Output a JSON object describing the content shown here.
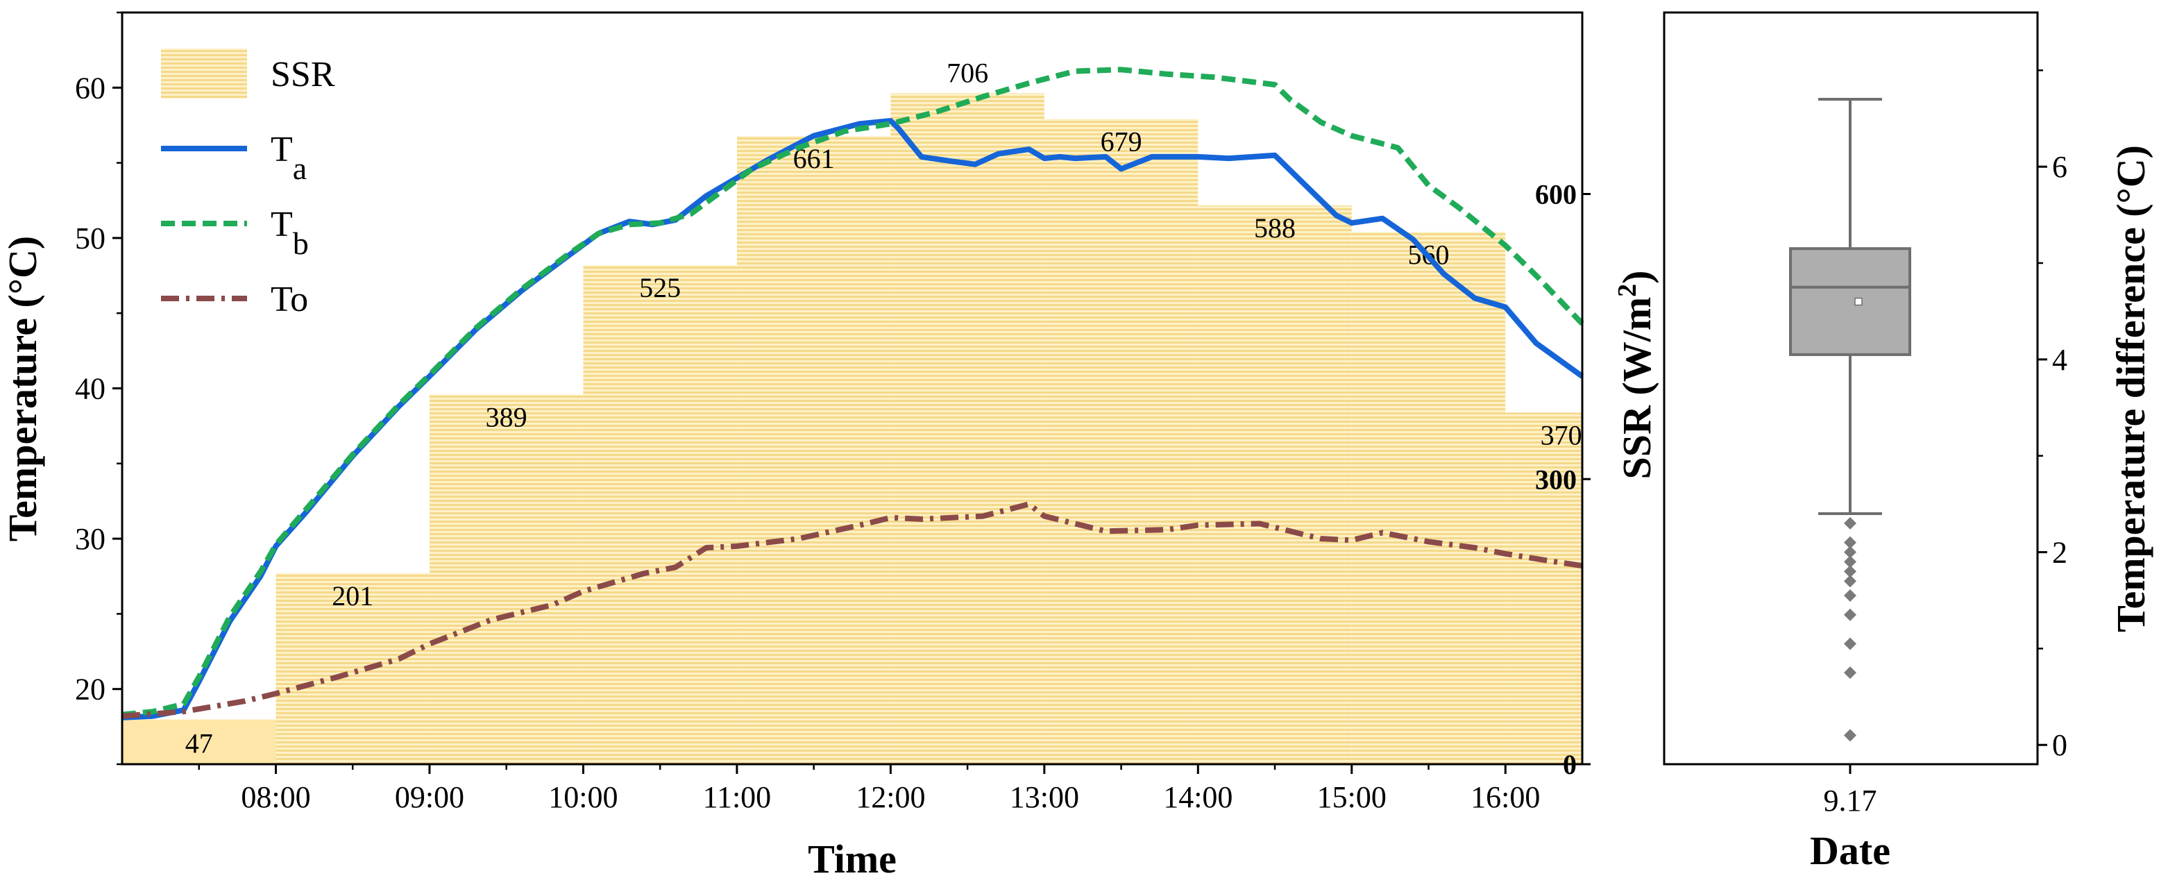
{
  "chart_data": [
    {
      "type": "line",
      "title": "",
      "xlabel": "Time",
      "ylabel": "Temperature (°C)",
      "y2label": "SSR (W/m²)",
      "xlim": [
        7.0,
        16.5
      ],
      "ylim": [
        15,
        65
      ],
      "y2lim": [
        0,
        791
      ],
      "xticks": [
        {
          "value": 8,
          "label": "08:00"
        },
        {
          "value": 9,
          "label": "09:00"
        },
        {
          "value": 10,
          "label": "10:00"
        },
        {
          "value": 11,
          "label": "11:00"
        },
        {
          "value": 12,
          "label": "12:00"
        },
        {
          "value": 13,
          "label": "13:00"
        },
        {
          "value": 14,
          "label": "14:00"
        },
        {
          "value": 15,
          "label": "15:00"
        },
        {
          "value": 16,
          "label": "16:00"
        }
      ],
      "yticks": [
        {
          "value": 20,
          "label": "20"
        },
        {
          "value": 30,
          "label": "30"
        },
        {
          "value": 40,
          "label": "40"
        },
        {
          "value": 50,
          "label": "50"
        },
        {
          "value": 60,
          "label": "60"
        }
      ],
      "y2ticks": [
        {
          "value": 0,
          "label": "0"
        },
        {
          "value": 300,
          "label": "300"
        },
        {
          "value": 600,
          "label": "600"
        }
      ],
      "ssr_bars": {
        "name": "SSR",
        "color": "#fbe7a6",
        "hatch_color": "#f2d27a",
        "bars": [
          {
            "start": 7,
            "end": 8,
            "value": 47,
            "label": "47"
          },
          {
            "start": 8,
            "end": 9,
            "value": 201,
            "label": "201"
          },
          {
            "start": 9,
            "end": 10,
            "value": 389,
            "label": "389"
          },
          {
            "start": 10,
            "end": 11,
            "value": 525,
            "label": "525"
          },
          {
            "start": 11,
            "end": 12,
            "value": 661,
            "label": "661"
          },
          {
            "start": 12,
            "end": 13,
            "value": 706,
            "label": "706"
          },
          {
            "start": 13,
            "end": 14,
            "value": 679,
            "label": "679"
          },
          {
            "start": 14,
            "end": 15,
            "value": 588,
            "label": "588"
          },
          {
            "start": 15,
            "end": 16,
            "value": 560,
            "label": "560"
          },
          {
            "start": 16,
            "end": 16.5,
            "value": 370,
            "label": "370"
          }
        ]
      },
      "legend": {
        "position": "top-left",
        "entries": [
          {
            "name": "SSR",
            "main": "SSR",
            "sub": ""
          },
          {
            "name": "Ta",
            "main": "T",
            "sub": "a"
          },
          {
            "name": "Tb",
            "main": "T",
            "sub": "b"
          },
          {
            "name": "To",
            "main": "To",
            "sub": ""
          }
        ]
      },
      "series": [
        {
          "name": "Ta",
          "color": "#1565d8",
          "style": "solid",
          "x": [
            7.0,
            7.2,
            7.4,
            7.5,
            7.7,
            7.9,
            8.0,
            8.2,
            8.5,
            8.8,
            9.0,
            9.3,
            9.6,
            9.9,
            10.1,
            10.3,
            10.45,
            10.6,
            10.8,
            11.0,
            11.2,
            11.5,
            11.8,
            12.0,
            12.05,
            12.2,
            12.4,
            12.55,
            12.7,
            12.9,
            13.0,
            13.1,
            13.2,
            13.4,
            13.5,
            13.7,
            14.0,
            14.2,
            14.5,
            14.7,
            14.9,
            15.0,
            15.2,
            15.4,
            15.6,
            15.8,
            16.0,
            16.2,
            16.5
          ],
          "values": [
            18.1,
            18.2,
            18.6,
            20.5,
            24.5,
            27.5,
            29.5,
            31.8,
            35.5,
            38.8,
            40.8,
            43.9,
            46.5,
            48.8,
            50.3,
            51.1,
            50.9,
            51.2,
            52.8,
            54.0,
            55.2,
            56.8,
            57.6,
            57.8,
            57.3,
            55.4,
            55.1,
            54.9,
            55.6,
            55.9,
            55.3,
            55.4,
            55.3,
            55.4,
            54.6,
            55.4,
            55.4,
            55.3,
            55.5,
            53.5,
            51.5,
            51.0,
            51.3,
            49.9,
            47.6,
            46.0,
            45.4,
            43.0,
            40.8
          ]
        },
        {
          "name": "Tb",
          "color": "#1fab58",
          "style": "dashed",
          "x": [
            7.0,
            7.2,
            7.4,
            7.5,
            7.7,
            7.9,
            8.0,
            8.2,
            8.5,
            8.8,
            9.0,
            9.3,
            9.6,
            9.9,
            10.1,
            10.3,
            10.5,
            10.7,
            10.9,
            11.1,
            11.4,
            11.7,
            12.0,
            12.3,
            12.6,
            12.9,
            13.2,
            13.5,
            13.8,
            14.1,
            14.5,
            14.6,
            14.8,
            15.0,
            15.3,
            15.5,
            15.7,
            16.0,
            16.2,
            16.5
          ],
          "values": [
            18.3,
            18.5,
            19.0,
            20.8,
            24.8,
            27.8,
            29.6,
            32.0,
            35.6,
            38.9,
            40.9,
            44.0,
            46.6,
            48.9,
            50.3,
            50.9,
            51.0,
            51.6,
            53.1,
            54.6,
            56.0,
            57.1,
            57.6,
            58.4,
            59.4,
            60.3,
            61.1,
            61.2,
            60.9,
            60.7,
            60.2,
            59.2,
            57.7,
            56.8,
            56.0,
            53.5,
            52.0,
            49.5,
            47.5,
            44.3
          ]
        },
        {
          "name": "To",
          "color": "#8b4a4a",
          "style": "dashdot",
          "x": [
            7.0,
            7.4,
            7.8,
            8.0,
            8.4,
            8.8,
            9.0,
            9.4,
            9.8,
            10.0,
            10.4,
            10.6,
            10.8,
            11.0,
            11.4,
            11.8,
            12.0,
            12.2,
            12.6,
            12.9,
            13.0,
            13.4,
            13.8,
            14.0,
            14.4,
            14.6,
            14.8,
            15.0,
            15.2,
            15.5,
            15.8,
            16.0,
            16.3,
            16.5
          ],
          "values": [
            18.2,
            18.5,
            19.2,
            19.7,
            20.8,
            22.0,
            23.0,
            24.6,
            25.6,
            26.5,
            27.7,
            28.1,
            29.4,
            29.5,
            30.0,
            30.9,
            31.4,
            31.3,
            31.5,
            32.3,
            31.5,
            30.5,
            30.6,
            30.9,
            31.0,
            30.5,
            30.0,
            29.9,
            30.4,
            29.8,
            29.4,
            29.0,
            28.5,
            28.2
          ]
        }
      ]
    },
    {
      "type": "box",
      "xlabel": "Date",
      "ylabel": "Temperature difference (°C)",
      "ylim": [
        -0.2,
        7.6
      ],
      "yticks": [
        {
          "value": 0,
          "label": "0"
        },
        {
          "value": 2,
          "label": "2"
        },
        {
          "value": 4,
          "label": "4"
        },
        {
          "value": 6,
          "label": "6"
        }
      ],
      "category": "9.17",
      "box": {
        "whisker_low": 2.4,
        "q1": 4.05,
        "median": 4.75,
        "q3": 5.15,
        "whisker_high": 6.7,
        "mean": 4.6
      },
      "outliers": [
        2.3,
        2.1,
        2.0,
        1.9,
        1.8,
        1.7,
        1.55,
        1.35,
        1.05,
        0.75,
        0.1
      ],
      "box_color": "#aeaeae",
      "line_color": "#6e6e6e"
    }
  ]
}
